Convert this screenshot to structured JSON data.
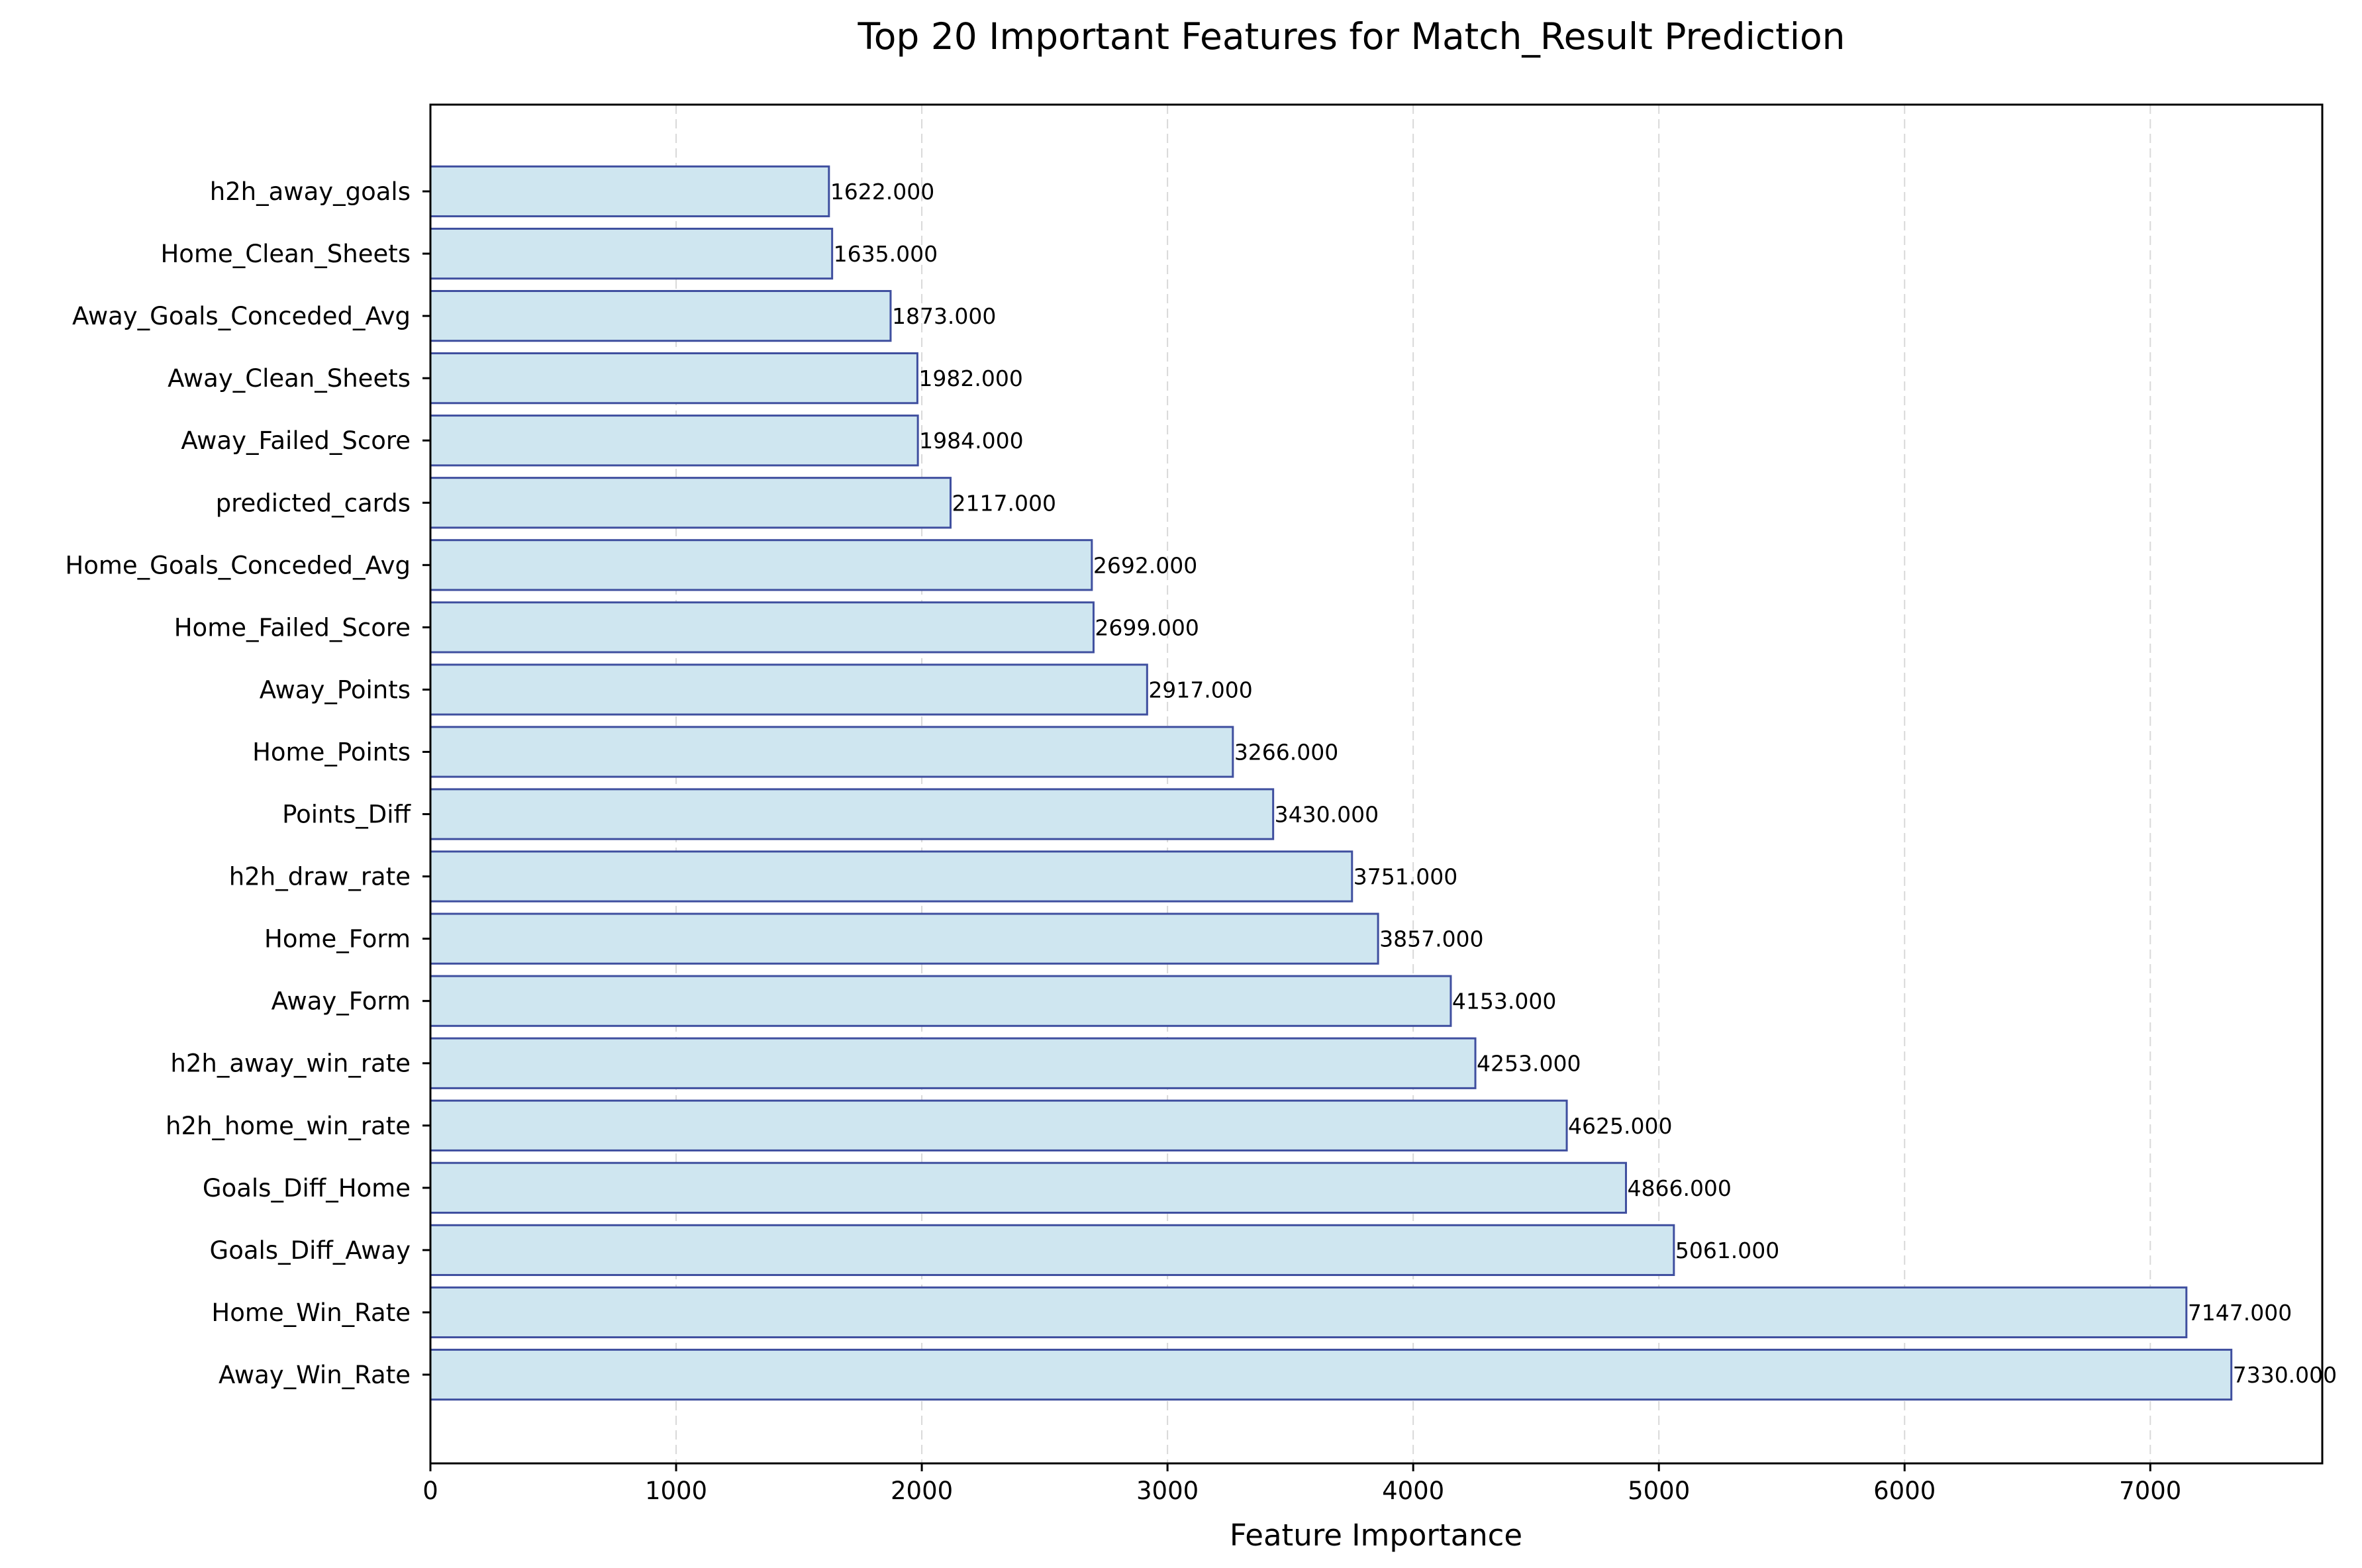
{
  "chart_data": {
    "type": "bar",
    "orientation": "horizontal",
    "title": "Top 20 Important Features for Match_Result Prediction",
    "xlabel": "Feature Importance",
    "ylabel": "",
    "xlim": [
      0,
      7700
    ],
    "xticks": [
      0,
      1000,
      2000,
      3000,
      4000,
      5000,
      6000,
      7000
    ],
    "grid": "x-dashed",
    "categories": [
      "Away_Win_Rate",
      "Home_Win_Rate",
      "Goals_Diff_Away",
      "Goals_Diff_Home",
      "h2h_home_win_rate",
      "h2h_away_win_rate",
      "Away_Form",
      "Home_Form",
      "h2h_draw_rate",
      "Points_Diff",
      "Home_Points",
      "Away_Points",
      "Home_Failed_Score",
      "Home_Goals_Conceded_Avg",
      "predicted_cards",
      "Away_Failed_Score",
      "Away_Clean_Sheets",
      "Away_Goals_Conceded_Avg",
      "Home_Clean_Sheets",
      "h2h_away_goals"
    ],
    "values": [
      7330,
      7147,
      5061,
      4866,
      4625,
      4253,
      4153,
      3857,
      3751,
      3430,
      3266,
      2917,
      2699,
      2692,
      2117,
      1984,
      1982,
      1873,
      1635,
      1622
    ],
    "data_labels": [
      "7330.000",
      "7147.000",
      "5061.000",
      "4866.000",
      "4625.000",
      "4253.000",
      "4153.000",
      "3857.000",
      "3751.000",
      "3430.000",
      "3266.000",
      "2917.000",
      "2699.000",
      "2692.000",
      "2117.000",
      "1984.000",
      "1982.000",
      "1873.000",
      "1635.000",
      "1622.000"
    ],
    "colors": {
      "bar_fill": "#cfe6f0",
      "bar_edge": "#3f4f9f",
      "grid": "#d9d9d9"
    }
  }
}
